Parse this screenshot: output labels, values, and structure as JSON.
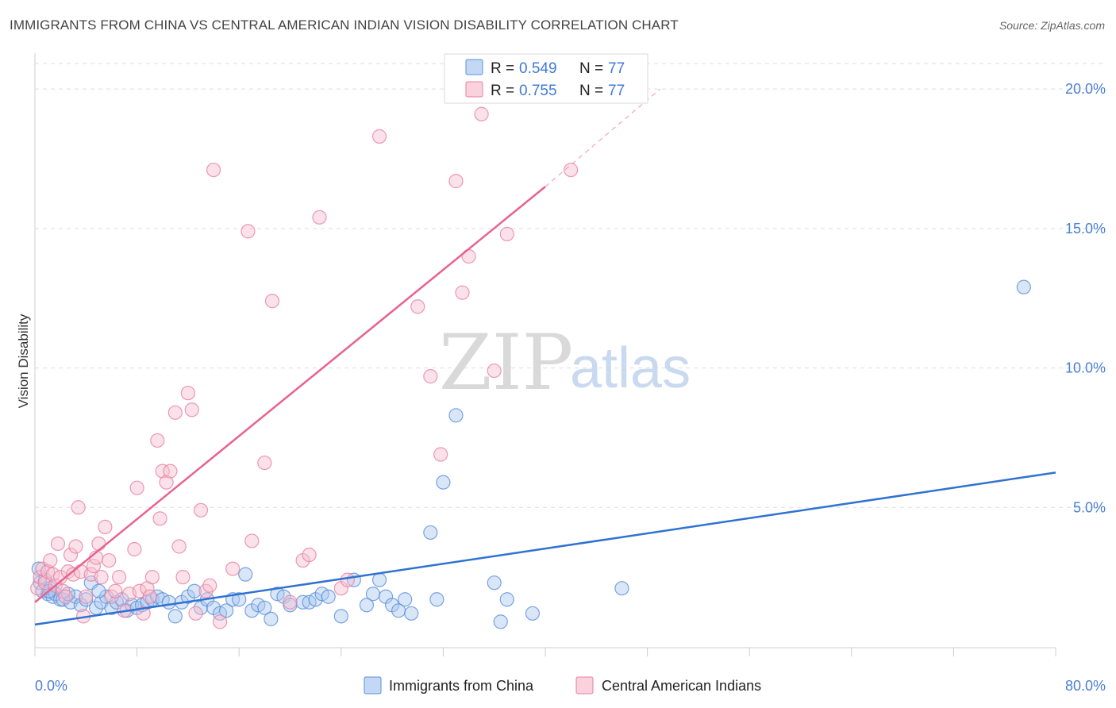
{
  "header": {
    "title": "IMMIGRANTS FROM CHINA VS CENTRAL AMERICAN INDIAN VISION DISABILITY CORRELATION CHART",
    "source": "Source: ZipAtlas.com"
  },
  "watermark": {
    "zip": "ZIP",
    "atlas": "atlas"
  },
  "colors": {
    "blue_fill": "#a9c8f0",
    "blue_stroke": "#5b8fd8",
    "blue_line": "#2f72d1",
    "pink_fill": "#f7bfd0",
    "pink_stroke": "#e87fa0",
    "pink_line": "#e8628e",
    "grid": "#dddddd",
    "tick_text": "#4a7fd4"
  },
  "legend": {
    "r_label": "R =",
    "n_label": "N =",
    "items": [
      {
        "r": "0.549",
        "n": "77"
      },
      {
        "r": "0.755",
        "n": "77"
      }
    ]
  },
  "chart_data": {
    "type": "scatter",
    "title": "IMMIGRANTS FROM CHINA VS CENTRAL AMERICAN INDIAN VISION DISABILITY CORRELATION CHART",
    "xlabel": "",
    "ylabel": "Vision Disability",
    "xlim": [
      0,
      80
    ],
    "ylim": [
      0,
      21
    ],
    "x_tick_labels": [
      "0.0%",
      "80.0%"
    ],
    "y_ticks": [
      5,
      10,
      15,
      20
    ],
    "y_tick_labels": [
      "5.0%",
      "10.0%",
      "15.0%",
      "20.0%"
    ],
    "grid": true,
    "legend_position": "top-center",
    "series": [
      {
        "name": "Immigrants from China",
        "color": "#5b8fd8",
        "trend": {
          "x": [
            0,
            80
          ],
          "y": [
            0.8,
            6.25
          ]
        },
        "points": [
          [
            0.3,
            2.8
          ],
          [
            0.4,
            2.3
          ],
          [
            0.6,
            2.0
          ],
          [
            0.8,
            2.4
          ],
          [
            1.0,
            1.9
          ],
          [
            1.2,
            2.1
          ],
          [
            1.4,
            1.8
          ],
          [
            1.6,
            1.9
          ],
          [
            2.0,
            1.7
          ],
          [
            2.2,
            1.7
          ],
          [
            2.8,
            1.6
          ],
          [
            3.2,
            1.8
          ],
          [
            3.6,
            1.5
          ],
          [
            4.0,
            1.7
          ],
          [
            4.4,
            2.3
          ],
          [
            4.8,
            1.4
          ],
          [
            5.2,
            1.6
          ],
          [
            5.6,
            1.8
          ],
          [
            6.0,
            1.4
          ],
          [
            6.4,
            1.6
          ],
          [
            6.8,
            1.7
          ],
          [
            7.2,
            1.3
          ],
          [
            7.6,
            1.5
          ],
          [
            8.0,
            1.4
          ],
          [
            8.4,
            1.5
          ],
          [
            8.8,
            1.6
          ],
          [
            9.2,
            1.7
          ],
          [
            9.6,
            1.8
          ],
          [
            10.0,
            1.7
          ],
          [
            10.5,
            1.6
          ],
          [
            11.0,
            1.1
          ],
          [
            11.5,
            1.6
          ],
          [
            12.0,
            1.8
          ],
          [
            12.5,
            2.0
          ],
          [
            13.0,
            1.4
          ],
          [
            13.5,
            1.7
          ],
          [
            14.0,
            1.4
          ],
          [
            14.5,
            1.2
          ],
          [
            15.0,
            1.3
          ],
          [
            15.5,
            1.7
          ],
          [
            16.0,
            1.7
          ],
          [
            16.5,
            2.6
          ],
          [
            17.0,
            1.3
          ],
          [
            17.5,
            1.5
          ],
          [
            18.0,
            1.4
          ],
          [
            18.5,
            1.0
          ],
          [
            19.0,
            1.9
          ],
          [
            19.5,
            1.8
          ],
          [
            20.0,
            1.5
          ],
          [
            21.0,
            1.6
          ],
          [
            21.5,
            1.6
          ],
          [
            22.0,
            1.7
          ],
          [
            22.5,
            1.9
          ],
          [
            23.0,
            1.8
          ],
          [
            24.0,
            1.1
          ],
          [
            25.0,
            2.4
          ],
          [
            26.0,
            1.5
          ],
          [
            26.5,
            1.9
          ],
          [
            27.0,
            2.4
          ],
          [
            27.5,
            1.8
          ],
          [
            28.0,
            1.5
          ],
          [
            28.5,
            1.3
          ],
          [
            29.0,
            1.7
          ],
          [
            29.5,
            1.2
          ],
          [
            31.0,
            4.1
          ],
          [
            31.5,
            1.7
          ],
          [
            32.0,
            5.9
          ],
          [
            33.0,
            8.3
          ],
          [
            36.0,
            2.3
          ],
          [
            36.5,
            0.9
          ],
          [
            37.0,
            1.7
          ],
          [
            39.0,
            1.2
          ],
          [
            46.0,
            2.1
          ],
          [
            77.5,
            12.9
          ],
          [
            1.1,
            2.0
          ],
          [
            2.6,
            1.9
          ],
          [
            5.0,
            2.0
          ]
        ]
      },
      {
        "name": "Central American Indians",
        "color": "#e87fa0",
        "trend": {
          "x": [
            0,
            40
          ],
          "y": [
            1.6,
            16.5
          ]
        },
        "trend_dashed": {
          "x": [
            40,
            49
          ],
          "y": [
            16.5,
            20.0
          ]
        },
        "points": [
          [
            0.2,
            2.1
          ],
          [
            0.4,
            2.5
          ],
          [
            0.6,
            2.8
          ],
          [
            0.8,
            2.3
          ],
          [
            1.0,
            2.7
          ],
          [
            1.2,
            3.1
          ],
          [
            1.4,
            2.6
          ],
          [
            1.6,
            2.2
          ],
          [
            1.8,
            3.7
          ],
          [
            2.0,
            2.5
          ],
          [
            2.2,
            2.0
          ],
          [
            2.4,
            1.8
          ],
          [
            2.6,
            2.7
          ],
          [
            2.8,
            3.3
          ],
          [
            3.0,
            2.6
          ],
          [
            3.2,
            3.6
          ],
          [
            3.4,
            5.0
          ],
          [
            3.6,
            2.7
          ],
          [
            3.8,
            1.1
          ],
          [
            4.0,
            1.8
          ],
          [
            4.4,
            2.6
          ],
          [
            4.6,
            2.9
          ],
          [
            4.8,
            3.2
          ],
          [
            5.0,
            3.7
          ],
          [
            5.2,
            2.5
          ],
          [
            5.5,
            4.3
          ],
          [
            5.8,
            3.1
          ],
          [
            6.0,
            1.8
          ],
          [
            6.3,
            2.0
          ],
          [
            6.6,
            2.5
          ],
          [
            7.0,
            1.3
          ],
          [
            7.4,
            1.9
          ],
          [
            7.8,
            3.5
          ],
          [
            8.0,
            5.7
          ],
          [
            8.2,
            2.0
          ],
          [
            8.5,
            1.2
          ],
          [
            8.8,
            2.1
          ],
          [
            9.0,
            1.8
          ],
          [
            9.2,
            2.5
          ],
          [
            9.6,
            7.4
          ],
          [
            9.8,
            4.6
          ],
          [
            10.0,
            6.3
          ],
          [
            10.3,
            5.9
          ],
          [
            10.6,
            6.3
          ],
          [
            11.0,
            8.4
          ],
          [
            11.3,
            3.6
          ],
          [
            11.6,
            2.5
          ],
          [
            12.0,
            9.1
          ],
          [
            12.3,
            8.5
          ],
          [
            12.6,
            1.2
          ],
          [
            13.0,
            4.9
          ],
          [
            13.4,
            2.0
          ],
          [
            13.7,
            2.2
          ],
          [
            14.0,
            17.1
          ],
          [
            14.5,
            0.9
          ],
          [
            15.5,
            2.8
          ],
          [
            16.7,
            14.9
          ],
          [
            17.0,
            3.8
          ],
          [
            18.0,
            6.6
          ],
          [
            18.6,
            12.4
          ],
          [
            20.0,
            1.6
          ],
          [
            21.0,
            3.1
          ],
          [
            21.5,
            3.3
          ],
          [
            22.3,
            15.4
          ],
          [
            24.0,
            2.1
          ],
          [
            24.5,
            2.4
          ],
          [
            27.0,
            18.3
          ],
          [
            30.0,
            12.2
          ],
          [
            31.0,
            9.7
          ],
          [
            31.8,
            6.9
          ],
          [
            33.0,
            16.7
          ],
          [
            33.5,
            12.7
          ],
          [
            34.0,
            14.0
          ],
          [
            35.0,
            19.1
          ],
          [
            36.0,
            9.9
          ],
          [
            37.0,
            14.8
          ],
          [
            42.0,
            17.1
          ]
        ]
      }
    ]
  },
  "bottom_legend": [
    {
      "label": "Immigrants from China"
    },
    {
      "label": "Central American Indians"
    }
  ]
}
